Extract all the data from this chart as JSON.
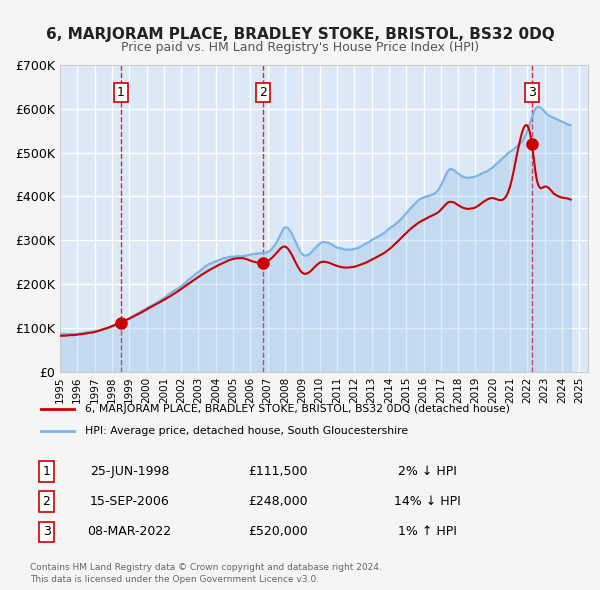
{
  "title": "6, MARJORAM PLACE, BRADLEY STOKE, BRISTOL, BS32 0DQ",
  "subtitle": "Price paid vs. HM Land Registry's House Price Index (HPI)",
  "background_color": "#f0f4f8",
  "plot_bg_color": "#dce8f5",
  "grid_color": "#ffffff",
  "sale_color": "#cc0000",
  "hpi_color": "#7ab4e8",
  "sales": [
    {
      "date": "1998-06-25",
      "price": 111500,
      "label": "1"
    },
    {
      "date": "2006-09-15",
      "price": 248000,
      "label": "2"
    },
    {
      "date": "2022-03-08",
      "price": 520000,
      "label": "3"
    }
  ],
  "sale_table": [
    {
      "num": "1",
      "date": "25-JUN-1998",
      "price": "£111,500",
      "change": "2% ↓ HPI"
    },
    {
      "num": "2",
      "date": "15-SEP-2006",
      "price": "£248,000",
      "change": "14% ↓ HPI"
    },
    {
      "num": "3",
      "date": "08-MAR-2022",
      "price": "£520,000",
      "change": "1% ↑ HPI"
    }
  ],
  "legend_line1": "6, MARJORAM PLACE, BRADLEY STOKE, BRISTOL, BS32 0DQ (detached house)",
  "legend_line2": "HPI: Average price, detached house, South Gloucestershire",
  "footer1": "Contains HM Land Registry data © Crown copyright and database right 2024.",
  "footer2": "This data is licensed under the Open Government Licence v3.0.",
  "ylim": [
    0,
    700000
  ],
  "yticks": [
    0,
    100000,
    200000,
    300000,
    400000,
    500000,
    600000,
    700000
  ],
  "ytick_labels": [
    "£0",
    "£100K",
    "£200K",
    "£300K",
    "£400K",
    "£500K",
    "£600K",
    "£700K"
  ],
  "xstart": 1995.0,
  "xend": 2025.5,
  "xticks": [
    1995,
    1996,
    1997,
    1998,
    1999,
    2000,
    2001,
    2002,
    2003,
    2004,
    2005,
    2006,
    2007,
    2008,
    2009,
    2010,
    2011,
    2012,
    2013,
    2014,
    2015,
    2016,
    2017,
    2018,
    2019,
    2020,
    2021,
    2022,
    2023,
    2024,
    2025
  ]
}
